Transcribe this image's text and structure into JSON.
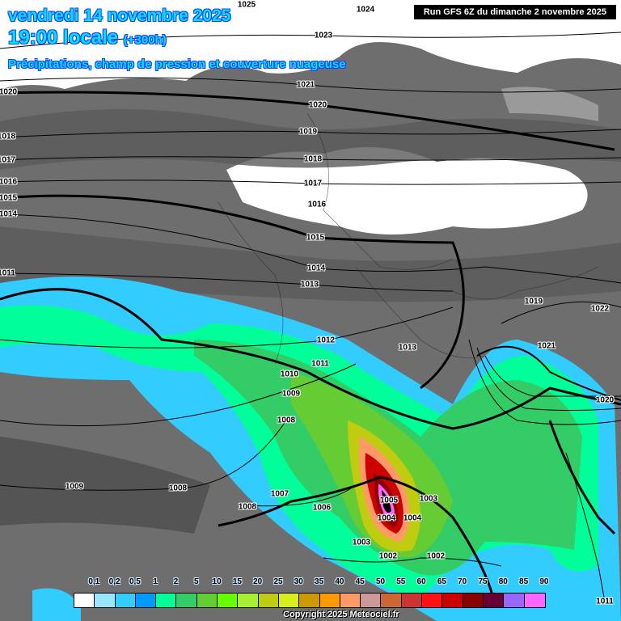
{
  "header": {
    "date": "vendredi 14 novembre 2025",
    "time": "19:00 locale",
    "lead": "(+300h)",
    "subtitle": "Précipitations, champ de pression et couverture nuageuse",
    "run": "Run GFS 6Z du dimanche 2 novembre 2025"
  },
  "colors": {
    "background_cloud": "#6e6e6e",
    "clear_sky": "#ffffff",
    "title_text": "#00e5ff"
  },
  "isobar_labels": [
    "1024",
    "1025",
    "1023",
    "1021",
    "1020",
    "1020",
    "1018",
    "1019",
    "1017",
    "1018",
    "1016",
    "1017",
    "1015",
    "1016",
    "1014",
    "1015",
    "1011",
    "1014",
    "1013",
    "1019",
    "1022",
    "1012",
    "1013",
    "1021",
    "1010",
    "1011",
    "1009",
    "1020",
    "1008",
    "1009",
    "1008",
    "1007",
    "1008",
    "1006",
    "1005",
    "1004",
    "1003",
    "1004",
    "1003",
    "1002",
    "1002",
    "1011"
  ],
  "legend": {
    "unit_labels": [
      "0,1",
      "0,2",
      "0,5",
      "1",
      "2",
      "5",
      "10",
      "15",
      "20",
      "25",
      "30",
      "35",
      "40",
      "45",
      "50",
      "55",
      "60",
      "65",
      "70",
      "75",
      "80",
      "85",
      "90"
    ],
    "colors": [
      "#ffffff",
      "#99e6ff",
      "#33ccff",
      "#0099ff",
      "#00ff99",
      "#33cc66",
      "#66cc33",
      "#66ff00",
      "#a6f030",
      "#bfcc10",
      "#d9ee16",
      "#cc9900",
      "#ff9900",
      "#ff9966",
      "#cc9999",
      "#cc6633",
      "#cc3333",
      "#ff1111",
      "#cc0000",
      "#880000",
      "#660033",
      "#9966ff",
      "#ff66ff"
    ]
  },
  "copyright": "Copyright 2025 Meteociel.fr"
}
